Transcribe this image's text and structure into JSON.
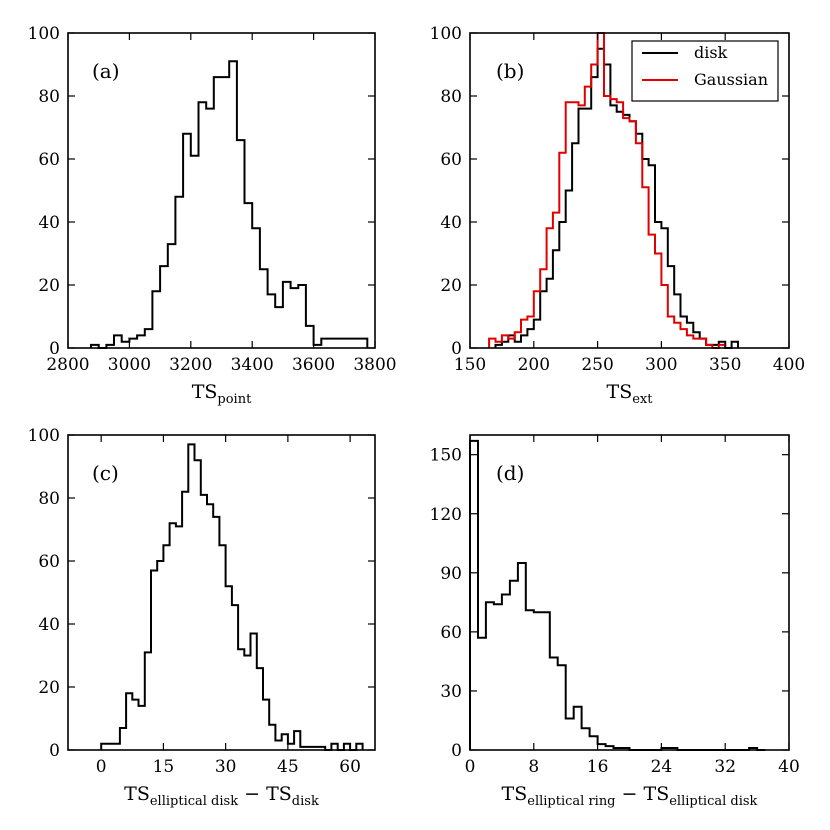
{
  "chart_data": [
    {
      "type": "histogram",
      "panel_label": "(a)",
      "xlabel_main": "TS",
      "xlabel_sub": "point",
      "xlim": [
        2800,
        3800
      ],
      "ylim": [
        0,
        100
      ],
      "xticks": [
        "2800",
        "3000",
        "3200",
        "3400",
        "3600",
        "3800"
      ],
      "yticks": [
        "0",
        "20",
        "40",
        "60",
        "80",
        "100"
      ],
      "bin_width": 25,
      "series": [
        {
          "color": "#000000",
          "edges": [
            2875,
            2900,
            2925,
            2950,
            2975,
            3000,
            3025,
            3050,
            3075,
            3100,
            3125,
            3150,
            3175,
            3200,
            3225,
            3250,
            3275,
            3300,
            3325,
            3350,
            3375,
            3400,
            3425,
            3450,
            3475,
            3500,
            3525,
            3550,
            3575,
            3600,
            3625,
            3650,
            3675,
            3700,
            3725,
            3750,
            3775
          ],
          "counts": [
            1,
            0,
            1,
            4,
            2,
            3,
            4,
            6,
            18,
            26,
            33,
            48,
            68,
            61,
            78,
            76,
            86,
            86,
            91,
            66,
            46,
            38,
            25,
            17,
            13,
            21,
            19,
            20,
            7,
            1,
            3,
            3,
            3,
            3,
            3,
            3
          ]
        }
      ]
    },
    {
      "type": "histogram",
      "panel_label": "(b)",
      "xlabel_main": "TS",
      "xlabel_sub": "ext",
      "xlim": [
        150,
        400
      ],
      "ylim": [
        0,
        100
      ],
      "xticks": [
        "150",
        "200",
        "250",
        "300",
        "350",
        "400"
      ],
      "yticks": [
        "0",
        "20",
        "40",
        "60",
        "80",
        "100"
      ],
      "legend": {
        "position": "top-right",
        "entries": [
          "disk",
          "Gaussian"
        ]
      },
      "series": [
        {
          "name": "disk",
          "color": "#000000",
          "edges": [
            170,
            175,
            180,
            185,
            190,
            195,
            200,
            205,
            210,
            215,
            220,
            225,
            230,
            235,
            240,
            245,
            250,
            255,
            260,
            265,
            270,
            275,
            280,
            285,
            290,
            295,
            300,
            305,
            310,
            315,
            320,
            325,
            330,
            335,
            340,
            345,
            350,
            355,
            360
          ],
          "counts": [
            1,
            2,
            4,
            2,
            4,
            6,
            9,
            18,
            22,
            31,
            40,
            50,
            65,
            76,
            76,
            86,
            95,
            90,
            77,
            75,
            74,
            72,
            68,
            60,
            58,
            40,
            38,
            26,
            17,
            10,
            8,
            5,
            3,
            1,
            1,
            2,
            0,
            2
          ]
        },
        {
          "name": "Gaussian",
          "color": "#e00000",
          "edges": [
            165,
            170,
            175,
            180,
            185,
            190,
            195,
            200,
            205,
            210,
            215,
            220,
            225,
            230,
            235,
            240,
            245,
            250,
            255,
            260,
            265,
            270,
            275,
            280,
            285,
            290,
            295,
            300,
            305,
            310,
            315,
            320,
            325,
            330,
            335,
            340,
            345,
            350
          ],
          "counts": [
            3,
            2,
            4,
            3,
            5,
            9,
            10,
            18,
            25,
            38,
            43,
            62,
            78,
            78,
            77,
            83,
            90,
            100,
            80,
            79,
            78,
            73,
            72,
            65,
            51,
            36,
            30,
            20,
            10,
            8,
            6,
            4,
            3,
            3,
            1,
            0,
            1
          ]
        }
      ]
    },
    {
      "type": "histogram",
      "panel_label": "(c)",
      "xlabel_main": "TS",
      "xlabel_sub": "elliptical disk",
      "xlabel_minus": " − TS",
      "xlabel_sub2": "disk",
      "xlim": [
        -8,
        66
      ],
      "ylim": [
        0,
        100
      ],
      "xticks": [
        "0",
        "15",
        "30",
        "45",
        "60"
      ],
      "yticks": [
        "0",
        "20",
        "40",
        "60",
        "80",
        "100"
      ],
      "series": [
        {
          "color": "#000000",
          "edges": [
            0,
            1.5,
            3,
            4.5,
            6,
            7.5,
            9,
            10.5,
            12,
            13.5,
            15,
            16.5,
            18,
            19.5,
            21,
            22.5,
            24,
            25.5,
            27,
            28.5,
            30,
            31.5,
            33,
            34.5,
            36,
            37.5,
            39,
            40.5,
            42,
            43.5,
            45,
            46.5,
            48,
            49.5,
            51,
            52.5,
            54,
            55.5,
            57,
            58.5,
            60,
            61.5,
            63
          ],
          "counts": [
            2,
            2,
            2,
            7,
            18,
            16,
            14,
            31,
            57,
            60,
            65,
            72,
            71,
            82,
            97,
            92,
            81,
            78,
            74,
            65,
            52,
            46,
            32,
            30,
            37,
            26,
            16,
            8,
            3,
            5,
            2,
            6,
            1,
            1,
            1,
            1,
            0,
            2,
            0,
            2,
            0,
            2
          ]
        }
      ]
    },
    {
      "type": "histogram",
      "panel_label": "(d)",
      "xlabel_main": "TS",
      "xlabel_sub": "elliptical ring",
      "xlabel_minus": " − TS",
      "xlabel_sub2": "elliptical disk",
      "xlim": [
        0,
        40
      ],
      "ylim": [
        0,
        160
      ],
      "xticks": [
        "0",
        "8",
        "16",
        "24",
        "32",
        "40"
      ],
      "yticks": [
        "0",
        "30",
        "60",
        "90",
        "120",
        "150"
      ],
      "series": [
        {
          "color": "#000000",
          "edges": [
            0,
            1,
            2,
            3,
            4,
            5,
            6,
            7,
            8,
            9,
            10,
            11,
            12,
            13,
            14,
            15,
            16,
            17,
            18,
            19,
            20,
            21,
            22,
            23,
            24,
            25,
            26,
            27,
            28,
            29,
            30,
            31,
            32,
            33,
            34,
            35,
            36,
            37
          ],
          "counts": [
            157,
            57,
            75,
            74,
            79,
            86,
            95,
            71,
            70,
            70,
            47,
            43,
            16,
            22,
            11,
            7,
            3,
            2,
            1,
            1,
            0,
            0,
            0,
            0,
            1,
            1,
            0,
            0,
            0,
            0,
            0,
            0,
            0,
            0,
            0,
            1,
            0
          ]
        }
      ]
    }
  ]
}
